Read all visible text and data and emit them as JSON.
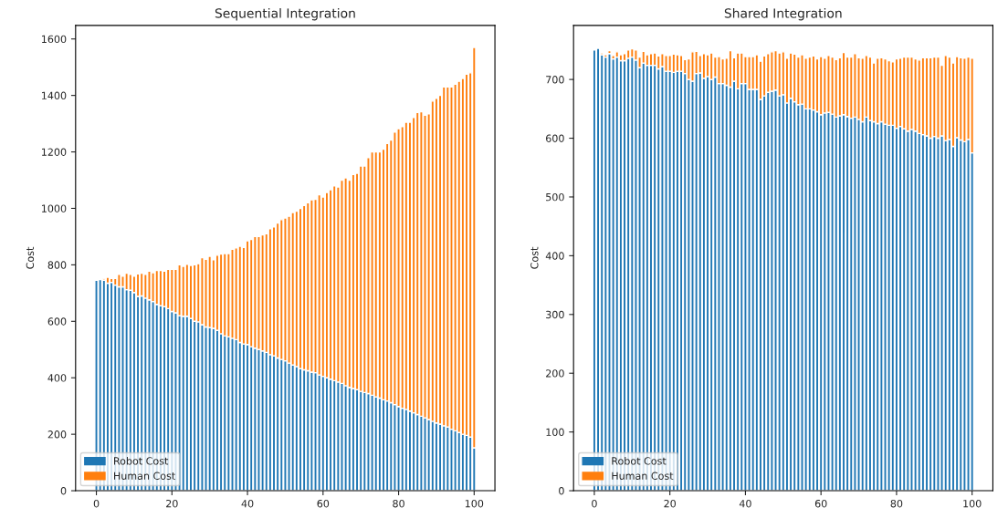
{
  "chart_data": [
    {
      "type": "bar",
      "title": "Sequential Integration",
      "ylabel": "Cost",
      "stacked": true,
      "legend": "bottom left",
      "grid": false,
      "x": [
        0,
        1,
        2,
        3,
        4,
        5,
        6,
        7,
        8,
        9,
        10,
        11,
        12,
        13,
        14,
        15,
        16,
        17,
        18,
        19,
        20,
        21,
        22,
        23,
        24,
        25,
        26,
        27,
        28,
        29,
        30,
        31,
        32,
        33,
        34,
        35,
        36,
        37,
        38,
        39,
        40,
        41,
        42,
        43,
        44,
        45,
        46,
        47,
        48,
        49,
        50,
        51,
        52,
        53,
        54,
        55,
        56,
        57,
        58,
        59,
        60,
        61,
        62,
        63,
        64,
        65,
        66,
        67,
        68,
        69,
        70,
        71,
        72,
        73,
        74,
        75,
        76,
        77,
        78,
        79,
        80,
        81,
        82,
        83,
        84,
        85,
        86,
        87,
        88,
        89,
        90,
        91,
        92,
        93,
        94,
        95,
        96,
        97,
        98,
        99,
        100
      ],
      "xlim": [
        -5.5,
        105.5
      ],
      "xticks": [
        0,
        20,
        40,
        60,
        80,
        100
      ],
      "ylim": [
        0,
        1648
      ],
      "yticks": [
        0,
        200,
        400,
        600,
        800,
        1000,
        1200,
        1400,
        1600
      ],
      "series": [
        {
          "name": "Robot Cost",
          "color": "#1f77b4",
          "values": [
            745,
            748,
            745,
            735,
            738,
            728,
            722,
            722,
            712,
            710,
            702,
            688,
            690,
            682,
            676,
            670,
            660,
            655,
            652,
            645,
            635,
            630,
            620,
            618,
            618,
            610,
            600,
            598,
            588,
            580,
            578,
            575,
            568,
            556,
            548,
            545,
            540,
            535,
            525,
            520,
            518,
            510,
            505,
            500,
            495,
            490,
            482,
            478,
            470,
            465,
            460,
            452,
            445,
            440,
            432,
            428,
            425,
            420,
            418,
            410,
            405,
            400,
            395,
            390,
            385,
            380,
            372,
            366,
            362,
            358,
            352,
            348,
            344,
            338,
            332,
            328,
            322,
            318,
            312,
            305,
            298,
            292,
            288,
            282,
            276,
            270,
            264,
            258,
            252,
            246,
            240,
            236,
            230,
            226,
            218,
            212,
            206,
            200,
            196,
            190,
            152
          ]
        },
        {
          "name": "Human Cost",
          "color": "#ff7f0e",
          "values": [
            null,
            null,
            5,
            21,
            14,
            24,
            44,
            38,
            58,
            56,
            58,
            80,
            80,
            84,
            102,
            102,
            120,
            125,
            126,
            139,
            149,
            154,
            180,
            177,
            184,
            188,
            200,
            206,
            237,
            240,
            252,
            243,
            266,
            282,
            292,
            295,
            315,
            325,
            341,
            342,
            367,
            380,
            395,
            400,
            411,
            420,
            446,
            456,
            478,
            495,
            506,
            520,
            540,
            550,
            568,
            582,
            595,
            610,
            614,
            638,
            635,
            656,
            671,
            690,
            691,
            720,
            736,
            734,
            758,
            766,
            798,
            802,
            836,
            862,
            868,
            872,
            888,
            912,
            930,
            965,
            984,
            998,
            1017,
            1023,
            1046,
            1070,
            1078,
            1072,
            1083,
            1134,
            1150,
            1164,
            1200,
            1204,
            1212,
            1228,
            1244,
            1260,
            1279,
            1290,
            1418
          ]
        }
      ]
    },
    {
      "type": "bar",
      "title": "Shared Integration",
      "ylabel": "Cost",
      "stacked": true,
      "legend": "bottom left",
      "grid": false,
      "x": [
        0,
        1,
        2,
        3,
        4,
        5,
        6,
        7,
        8,
        9,
        10,
        11,
        12,
        13,
        14,
        15,
        16,
        17,
        18,
        19,
        20,
        21,
        22,
        23,
        24,
        25,
        26,
        27,
        28,
        29,
        30,
        31,
        32,
        33,
        34,
        35,
        36,
        37,
        38,
        39,
        40,
        41,
        42,
        43,
        44,
        45,
        46,
        47,
        48,
        49,
        50,
        51,
        52,
        53,
        54,
        55,
        56,
        57,
        58,
        59,
        60,
        61,
        62,
        63,
        64,
        65,
        66,
        67,
        68,
        69,
        70,
        71,
        72,
        73,
        74,
        75,
        76,
        77,
        78,
        79,
        80,
        81,
        82,
        83,
        84,
        85,
        86,
        87,
        88,
        89,
        90,
        91,
        92,
        93,
        94,
        95,
        96,
        97,
        98,
        99,
        100
      ],
      "xlim": [
        -5.5,
        105.5
      ],
      "xticks": [
        0,
        20,
        40,
        60,
        80,
        100
      ],
      "ylim": [
        0,
        792
      ],
      "yticks": [
        0,
        100,
        200,
        300,
        400,
        500,
        600,
        700
      ],
      "series": [
        {
          "name": "Robot Cost",
          "color": "#1f77b4",
          "values": [
            750,
            753,
            742,
            738,
            744,
            735,
            738,
            732,
            732,
            736,
            738,
            733,
            720,
            728,
            724,
            724,
            724,
            718,
            722,
            714,
            714,
            712,
            714,
            714,
            710,
            700,
            697,
            710,
            711,
            702,
            705,
            700,
            704,
            693,
            693,
            690,
            687,
            697,
            684,
            693,
            693,
            683,
            683,
            683,
            666,
            672,
            678,
            680,
            682,
            672,
            674,
            660,
            668,
            662,
            657,
            658,
            650,
            650,
            648,
            645,
            640,
            643,
            644,
            641,
            636,
            638,
            640,
            637,
            634,
            636,
            632,
            628,
            636,
            630,
            628,
            625,
            628,
            624,
            622,
            622,
            617,
            620,
            616,
            612,
            615,
            612,
            608,
            606,
            604,
            600,
            603,
            600,
            604,
            596,
            598,
            586,
            601,
            597,
            594,
            598,
            575
          ]
        },
        {
          "name": "Human Cost",
          "color": "#ff7f0e",
          "values": [
            null,
            null,
            3,
            4,
            5,
            6,
            9,
            10,
            12,
            14,
            14,
            17,
            18,
            20,
            18,
            20,
            21,
            22,
            22,
            27,
            27,
            31,
            28,
            27,
            24,
            35,
            50,
            38,
            30,
            42,
            37,
            45,
            34,
            46,
            42,
            46,
            62,
            40,
            61,
            52,
            46,
            56,
            56,
            59,
            65,
            68,
            66,
            67,
            67,
            73,
            73,
            76,
            77,
            81,
            81,
            84,
            86,
            88,
            92,
            90,
            99,
            93,
            97,
            97,
            98,
            99,
            106,
            101,
            104,
            108,
            105,
            108,
            105,
            108,
            100,
            111,
            109,
            111,
            110,
            108,
            118,
            116,
            122,
            126,
            123,
            123,
            125,
            131,
            133,
            137,
            135,
            138,
            120,
            145,
            140,
            142,
            138,
            140,
            142,
            140,
            161
          ]
        }
      ]
    }
  ]
}
